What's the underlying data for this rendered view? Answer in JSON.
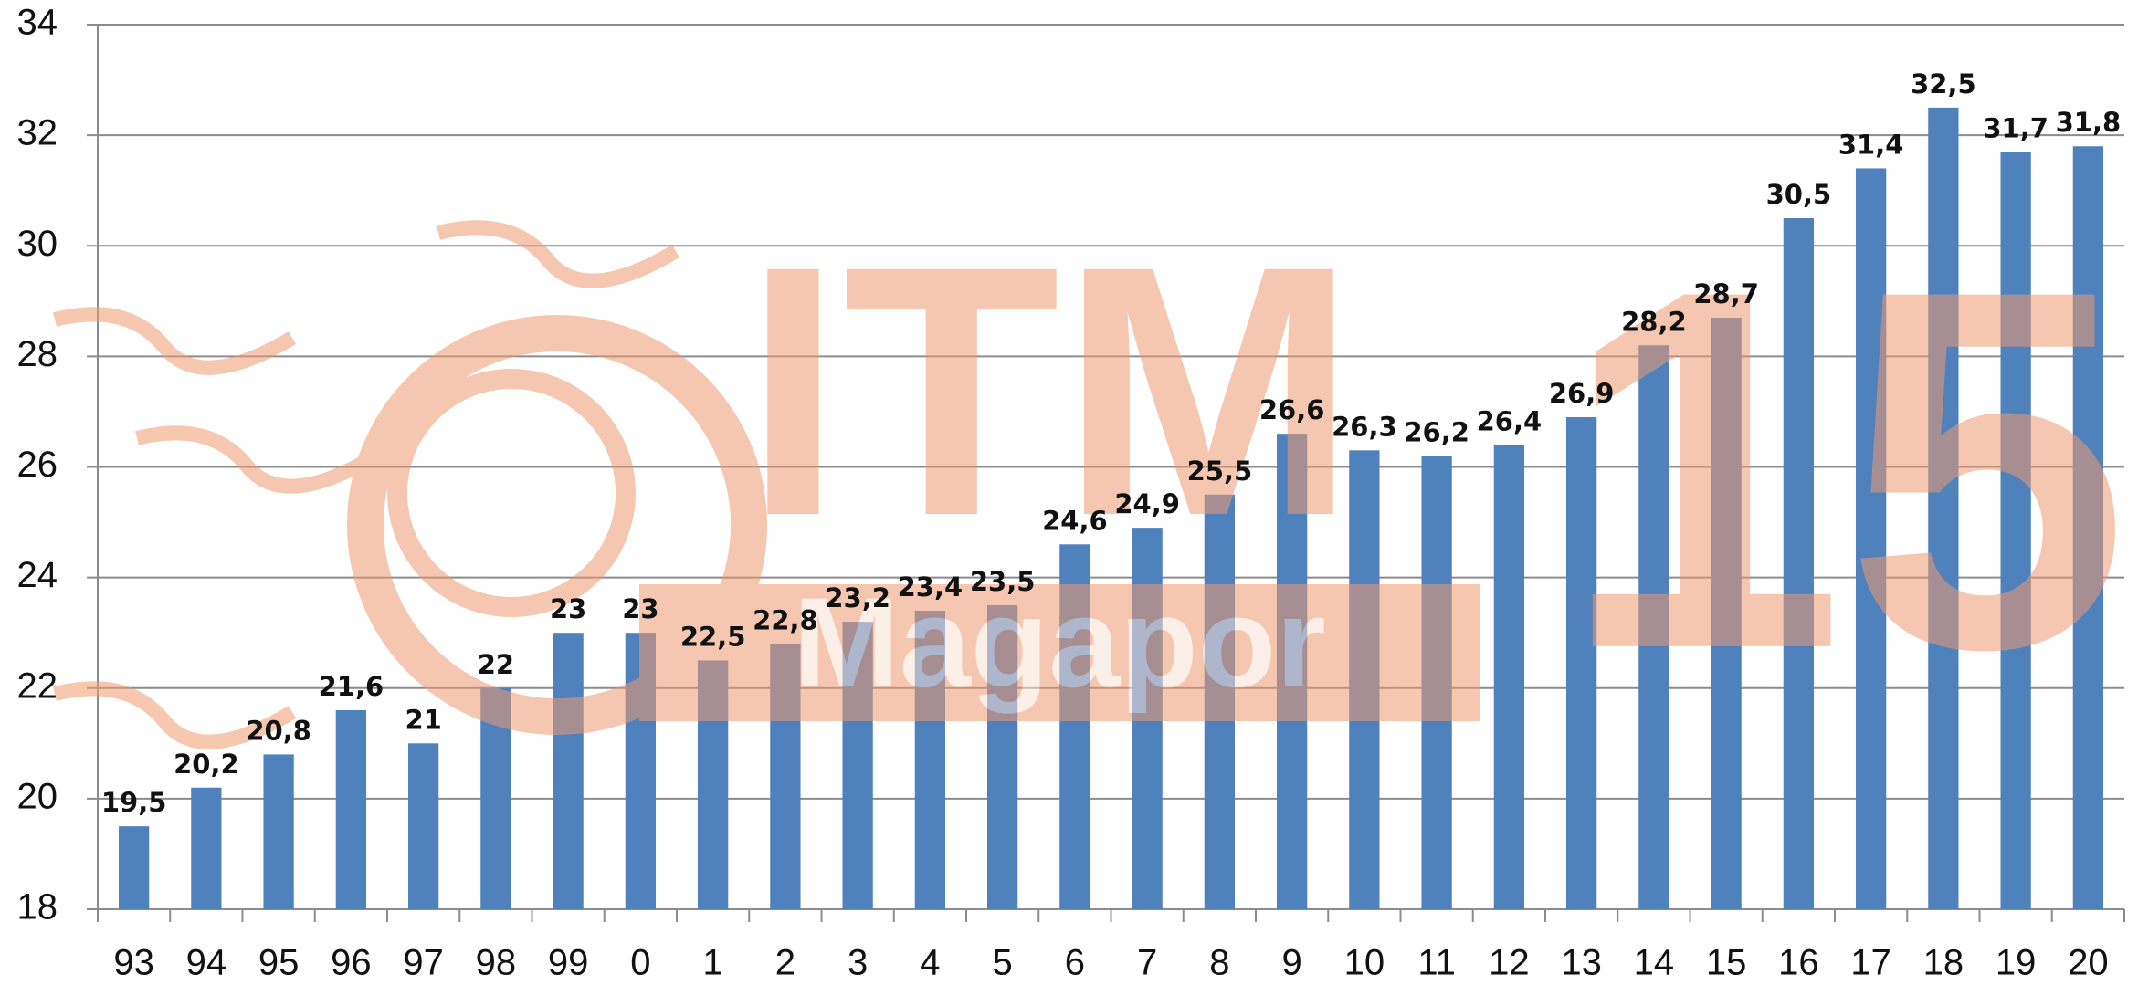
{
  "chart_data": {
    "type": "bar",
    "categories": [
      "93",
      "94",
      "95",
      "96",
      "97",
      "98",
      "99",
      "0",
      "1",
      "2",
      "3",
      "4",
      "5",
      "6",
      "7",
      "8",
      "9",
      "10",
      "11",
      "12",
      "13",
      "14",
      "15",
      "16",
      "17",
      "18",
      "19",
      "20"
    ],
    "values": [
      19.5,
      20.2,
      20.8,
      21.6,
      21,
      22,
      23,
      23,
      22.5,
      22.8,
      23.2,
      23.4,
      23.5,
      24.6,
      24.9,
      25.5,
      26.6,
      26.3,
      26.2,
      26.4,
      26.9,
      28.2,
      28.7,
      30.5,
      31.4,
      32.5,
      31.7,
      31.8
    ],
    "value_labels": [
      "19,5",
      "20,2",
      "20,8",
      "21,6",
      "21",
      "22",
      "23",
      "23",
      "22,5",
      "22,8",
      "23,2",
      "23,4",
      "23,5",
      "24,6",
      "24,9",
      "25,5",
      "26,6",
      "26,3",
      "26,2",
      "26,4",
      "26,9",
      "28,2",
      "28,7",
      "30,5",
      "31,4",
      "32,5",
      "31,7",
      "31,8"
    ],
    "color": "#4f81bd",
    "ylim": [
      18,
      34
    ],
    "yticks": [
      18,
      20,
      22,
      24,
      26,
      28,
      30,
      32,
      34
    ],
    "grid": true,
    "watermark": [
      "ITM",
      "15",
      "Magapor"
    ]
  }
}
